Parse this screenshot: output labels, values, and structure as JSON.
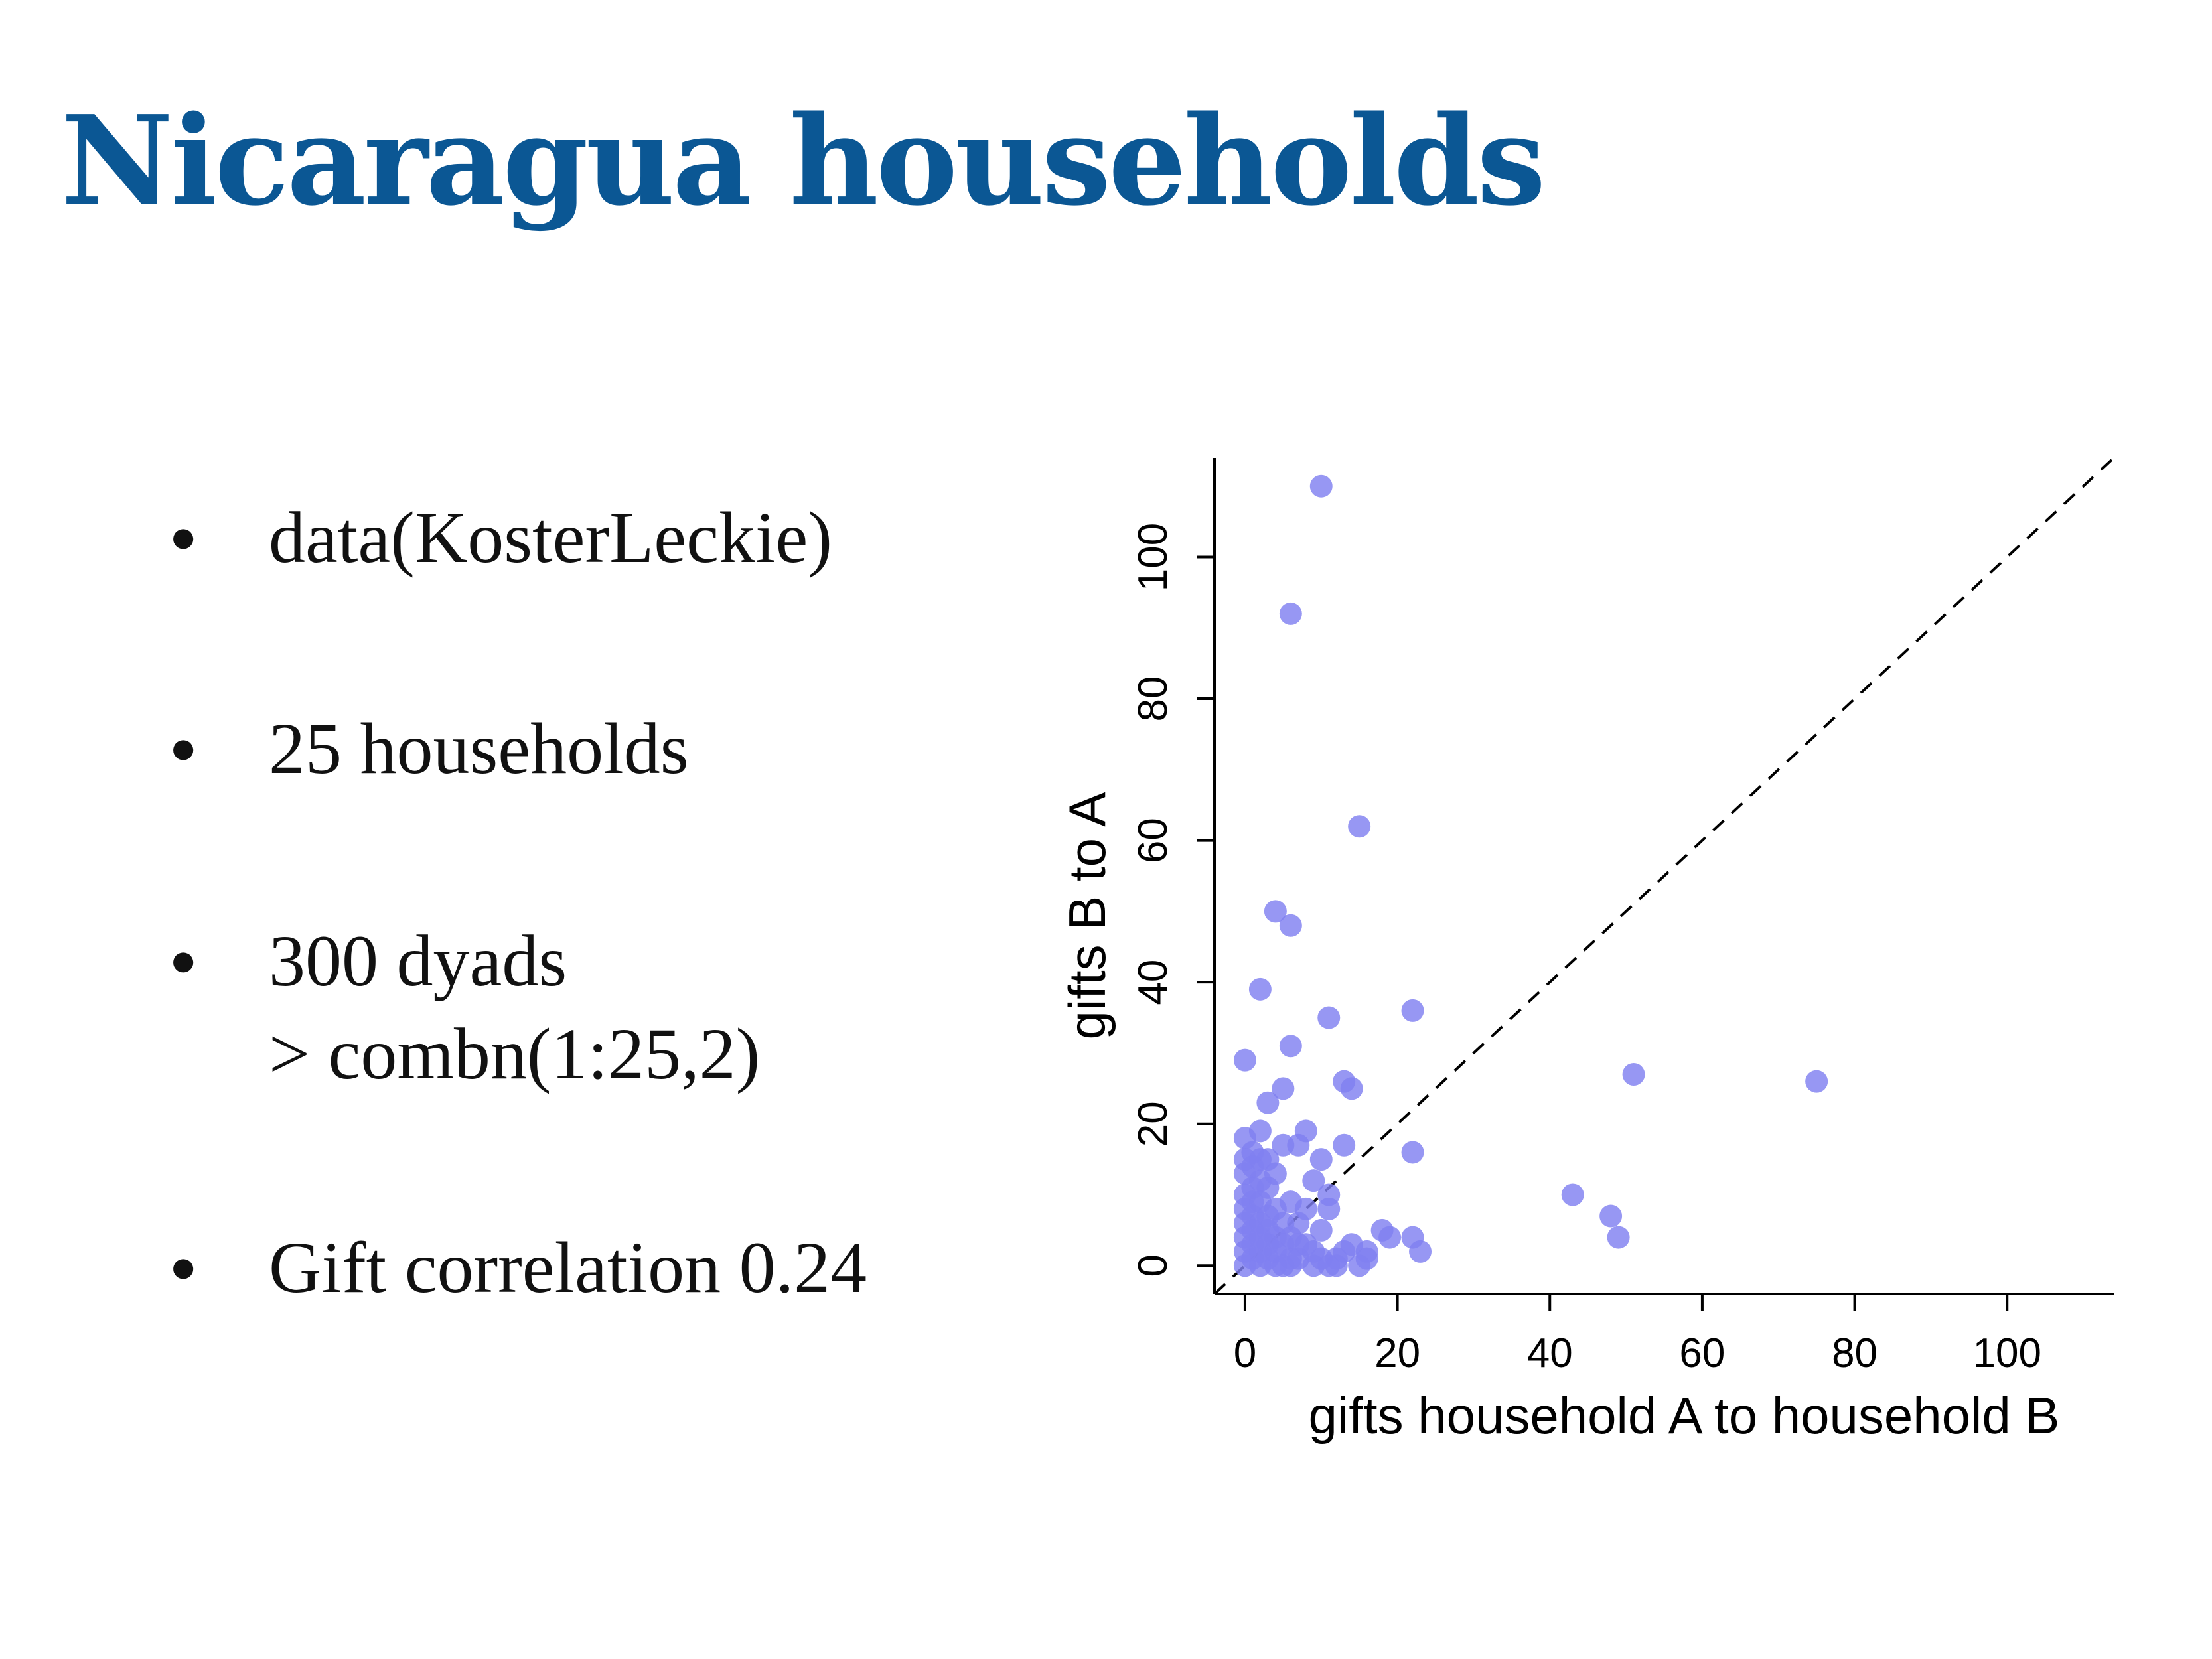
{
  "slide": {
    "title": "Nicaragua households",
    "title_color": "#0b5794",
    "bullets": [
      {
        "text": "data(KosterLeckie)",
        "sub": ""
      },
      {
        "text": "25 households",
        "sub": ""
      },
      {
        "text": "300 dyads",
        "sub": "> combn(1:25,2)"
      },
      {
        "text": "Gift correlation 0.24",
        "sub": ""
      }
    ]
  },
  "chart_data": {
    "type": "scatter",
    "title": "",
    "xlabel": "gifts household A to household B",
    "ylabel": "gifts B to A",
    "xlim": [
      -4,
      114
    ],
    "ylim": [
      -4,
      114
    ],
    "xticks": [
      0,
      20,
      40,
      60,
      80,
      100
    ],
    "yticks": [
      0,
      20,
      40,
      60,
      80,
      100
    ],
    "grid": false,
    "reference_line": {
      "style": "dashed",
      "slope": 1,
      "intercept": 0,
      "color": "#000000"
    },
    "point_color": "#8080f0",
    "series": [
      {
        "points": [
          [
            10,
            110
          ],
          [
            6,
            92
          ],
          [
            15,
            62
          ],
          [
            4,
            50
          ],
          [
            6,
            48
          ],
          [
            2,
            39
          ],
          [
            11,
            35
          ],
          [
            22,
            36
          ],
          [
            0,
            29
          ],
          [
            6,
            31
          ],
          [
            5,
            25
          ],
          [
            13,
            26
          ],
          [
            14,
            25
          ],
          [
            51,
            27
          ],
          [
            75,
            26
          ],
          [
            0,
            18
          ],
          [
            2,
            19
          ],
          [
            5,
            17
          ],
          [
            7,
            17
          ],
          [
            8,
            19
          ],
          [
            13,
            17
          ],
          [
            22,
            16
          ],
          [
            10,
            15
          ],
          [
            3,
            15
          ],
          [
            1,
            14
          ],
          [
            0,
            13
          ],
          [
            2,
            12
          ],
          [
            9,
            12
          ],
          [
            11,
            10
          ],
          [
            11,
            8
          ],
          [
            6,
            9
          ],
          [
            43,
            10
          ],
          [
            48,
            7
          ],
          [
            49,
            4
          ],
          [
            18,
            5
          ],
          [
            19,
            4
          ],
          [
            22,
            4
          ],
          [
            23,
            2
          ],
          [
            16,
            2
          ],
          [
            15,
            0
          ],
          [
            13,
            2
          ],
          [
            12,
            1
          ],
          [
            10,
            5
          ],
          [
            8,
            3
          ],
          [
            7,
            1
          ],
          [
            9,
            0
          ],
          [
            11,
            0
          ],
          [
            3,
            3
          ],
          [
            4,
            8
          ],
          [
            5,
            6
          ],
          [
            6,
            4
          ],
          [
            2,
            6
          ],
          [
            1,
            5
          ],
          [
            0,
            10
          ],
          [
            0,
            8
          ],
          [
            0,
            6
          ],
          [
            0,
            4
          ],
          [
            0,
            2
          ],
          [
            0,
            0
          ],
          [
            1,
            1
          ],
          [
            2,
            0
          ],
          [
            3,
            1
          ],
          [
            4,
            2
          ],
          [
            5,
            0
          ],
          [
            6,
            1
          ],
          [
            1,
            3
          ],
          [
            2,
            2
          ],
          [
            1,
            7
          ],
          [
            2,
            9
          ],
          [
            3,
            11
          ],
          [
            4,
            13
          ],
          [
            3,
            5
          ],
          [
            7,
            6
          ],
          [
            8,
            8
          ],
          [
            1,
            11
          ],
          [
            2,
            15
          ],
          [
            1,
            16
          ],
          [
            3,
            7
          ],
          [
            4,
            4
          ],
          [
            5,
            3
          ],
          [
            6,
            0
          ],
          [
            7,
            3
          ],
          [
            9,
            2
          ],
          [
            10,
            1
          ],
          [
            12,
            0
          ],
          [
            14,
            3
          ],
          [
            16,
            1
          ],
          [
            3,
            23
          ],
          [
            0,
            15
          ],
          [
            1,
            9
          ],
          [
            2,
            4
          ],
          [
            4,
            0
          ]
        ]
      }
    ]
  }
}
